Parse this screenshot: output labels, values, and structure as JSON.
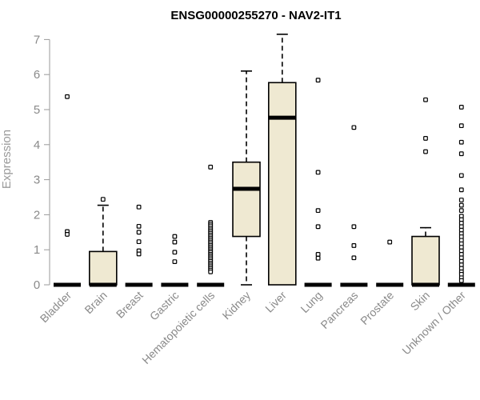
{
  "chart_data": {
    "type": "box",
    "title": "ENSG00000255270 - NAV2-IT1",
    "ylabel": "Expression",
    "xlabel": "",
    "ylim": [
      0,
      7.2
    ],
    "yticks": [
      0,
      1,
      2,
      3,
      4,
      5,
      6,
      7
    ],
    "box_fill": "#efe9d2",
    "categories": [
      "Bladder",
      "Brain",
      "Breast",
      "Gastric",
      "Hematopoietic cells",
      "Kidney",
      "Liver",
      "Lung",
      "Pancreas",
      "Prostate",
      "Skin",
      "Unknown / Other"
    ],
    "boxes": [
      {
        "q1": 0,
        "median": 0,
        "q3": 0,
        "whisker_low": 0,
        "whisker_high": 0,
        "outliers": [
          5.37,
          1.52,
          1.44
        ]
      },
      {
        "q1": 0,
        "median": 0,
        "q3": 0.95,
        "whisker_low": 0,
        "whisker_high": 2.27,
        "outliers": [
          2.44
        ]
      },
      {
        "q1": 0,
        "median": 0,
        "q3": 0,
        "whisker_low": 0,
        "whisker_high": 0,
        "outliers": [
          2.22,
          1.67,
          1.5,
          1.23,
          0.97,
          0.88
        ]
      },
      {
        "q1": 0,
        "median": 0,
        "q3": 0,
        "whisker_low": 0,
        "whisker_high": 0,
        "outliers": [
          1.38,
          1.22,
          0.93,
          0.66
        ]
      },
      {
        "q1": 0,
        "median": 0,
        "q3": 0,
        "whisker_low": 0,
        "whisker_high": 0,
        "outliers": [
          3.36,
          1.78,
          1.73,
          1.68,
          1.62,
          1.57,
          1.52,
          1.47,
          1.42,
          1.37,
          1.32,
          1.27,
          1.22,
          1.17,
          1.12,
          1.07,
          1.02,
          0.97,
          0.92,
          0.87,
          0.82,
          0.77,
          0.72,
          0.67,
          0.62,
          0.57,
          0.52,
          0.47,
          0.42,
          0.37
        ]
      },
      {
        "q1": 1.38,
        "median": 2.74,
        "q3": 3.5,
        "whisker_low": 0,
        "whisker_high": 6.1,
        "outliers": []
      },
      {
        "q1": 0,
        "median": 4.77,
        "q3": 5.77,
        "whisker_low": 0,
        "whisker_high": 7.15,
        "outliers": []
      },
      {
        "q1": 0,
        "median": 0,
        "q3": 0,
        "whisker_low": 0,
        "whisker_high": 0,
        "outliers": [
          5.84,
          3.21,
          2.12,
          1.66,
          0.87,
          0.76
        ]
      },
      {
        "q1": 0,
        "median": 0,
        "q3": 0,
        "whisker_low": 0,
        "whisker_high": 0,
        "outliers": [
          4.49,
          1.66,
          1.12,
          0.77
        ]
      },
      {
        "q1": 0,
        "median": 0,
        "q3": 0,
        "whisker_low": 0,
        "whisker_high": 0,
        "outliers": [
          1.22
        ]
      },
      {
        "q1": 0,
        "median": 0,
        "q3": 1.38,
        "whisker_low": 0,
        "whisker_high": 1.63,
        "outliers": [
          5.28,
          4.18,
          3.8
        ]
      },
      {
        "q1": 0,
        "median": 0,
        "q3": 0,
        "whisker_low": 0,
        "whisker_high": 0,
        "outliers": [
          5.07,
          4.54,
          4.07,
          3.74,
          3.12,
          2.71,
          2.42,
          2.27,
          2.12,
          1.96,
          1.86,
          1.76,
          1.66,
          1.56,
          1.46,
          1.37,
          1.27,
          1.17,
          1.07,
          0.97,
          0.87,
          0.77,
          0.67,
          0.57,
          0.47,
          0.37,
          0.3,
          0.2,
          0.12
        ]
      }
    ]
  }
}
